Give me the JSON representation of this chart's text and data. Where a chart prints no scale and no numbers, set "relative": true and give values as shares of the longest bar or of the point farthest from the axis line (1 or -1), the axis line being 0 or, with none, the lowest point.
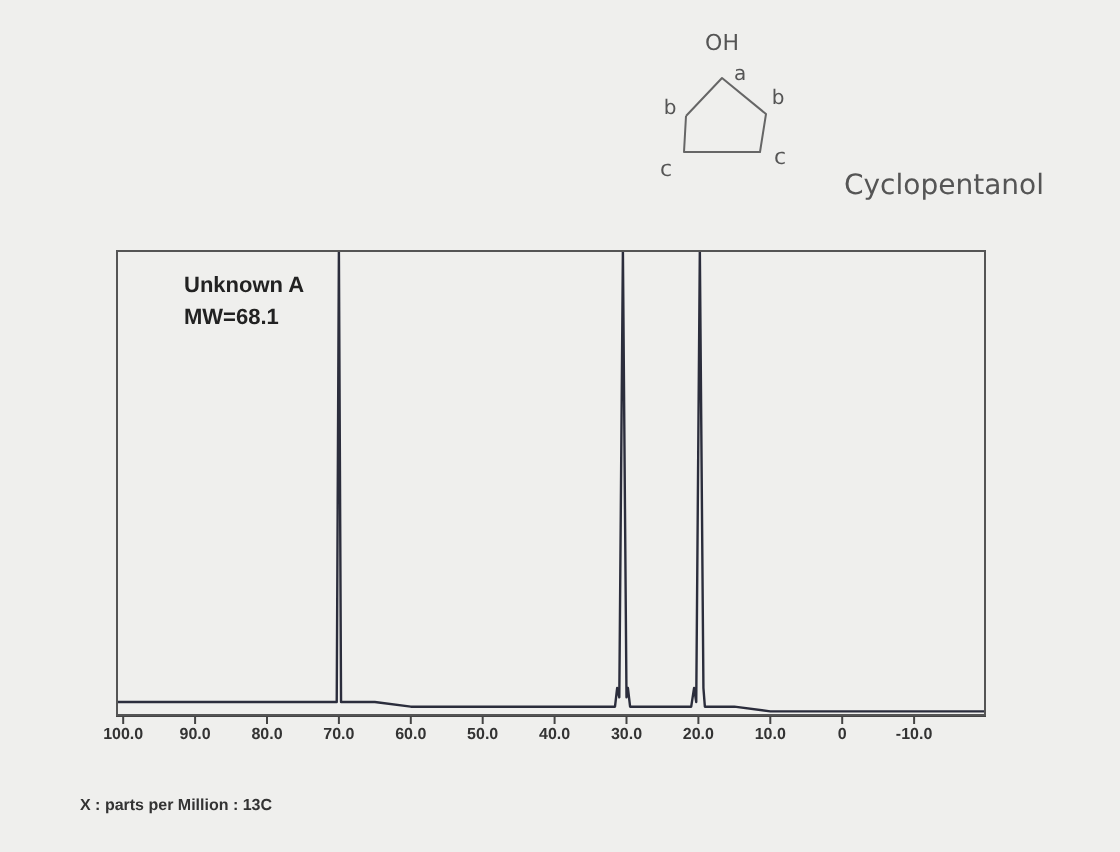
{
  "chart_data": {
    "type": "line",
    "relative": true,
    "xlabel": "X : parts per Million : 13C",
    "annotations": [
      "Unknown A",
      "MW=68.1",
      "Cyclopentanol",
      "OH",
      "a",
      "b",
      "b",
      "c",
      "c"
    ],
    "x": [
      101,
      95,
      90,
      85,
      80,
      75,
      70.6,
      70.3,
      70.0,
      69.7,
      69.4,
      65,
      60,
      55,
      50,
      45,
      40,
      35,
      32,
      31.6,
      31.3,
      31.0,
      30.5,
      30.0,
      29.8,
      29.5,
      29.1,
      25,
      22,
      21,
      20.6,
      20.3,
      19.8,
      19.3,
      19.1,
      18.7,
      15,
      10,
      5,
      0,
      -5,
      -10,
      -15,
      -20
    ],
    "values": [
      0.03,
      0.03,
      0.03,
      0.03,
      0.03,
      0.03,
      0.03,
      0.03,
      1,
      0.03,
      0.03,
      0.03,
      0.02,
      0.02,
      0.02,
      0.02,
      0.02,
      0.02,
      0.02,
      0.02,
      0.06,
      0.04,
      1,
      0.04,
      0.06,
      0.02,
      0.02,
      0.02,
      0.02,
      0.02,
      0.06,
      0.03,
      1,
      0.06,
      0.02,
      0.02,
      0.02,
      0.01,
      0.01,
      0.01,
      0.01,
      0.01,
      0.01,
      0.01
    ],
    "color": "#2b2d3c",
    "xlim": [
      101,
      -20
    ],
    "xticks": [
      {
        "value": 100,
        "label": "100.0"
      },
      {
        "value": 90,
        "label": "90.0"
      },
      {
        "value": 80,
        "label": "80.0"
      },
      {
        "value": 70,
        "label": "70.0"
      },
      {
        "value": 60,
        "label": "60.0"
      },
      {
        "value": 50,
        "label": "50.0"
      },
      {
        "value": 40,
        "label": "40.0"
      },
      {
        "value": 30,
        "label": "30.0"
      },
      {
        "value": 20,
        "label": "20.0"
      },
      {
        "value": 10,
        "label": "10.0"
      },
      0,
      {
        "value": -10,
        "label": "-10.0"
      }
    ],
    "marker": "none",
    "line_style": "solid"
  }
}
